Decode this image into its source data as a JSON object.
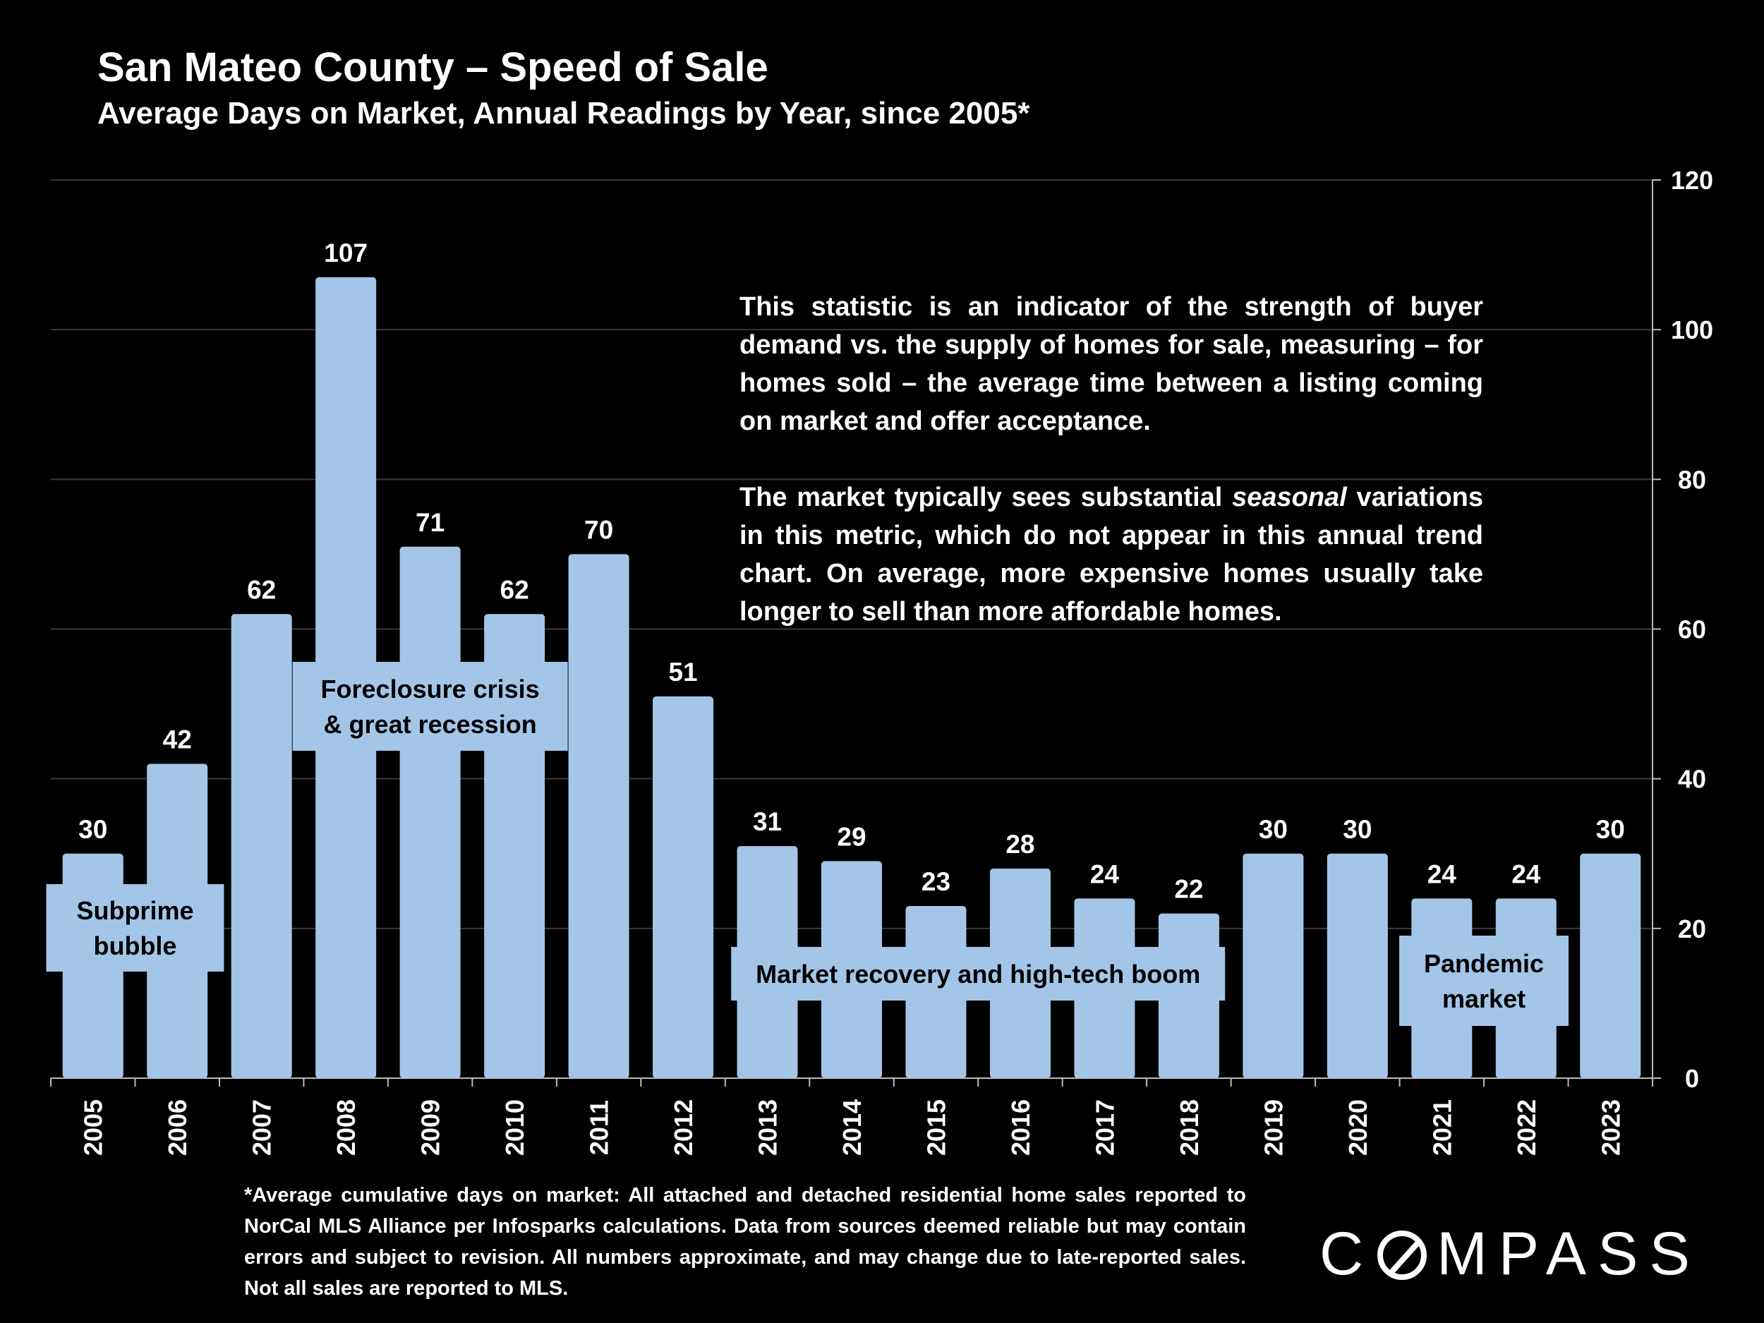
{
  "title": "San Mateo County – Speed of Sale",
  "subtitle": "Average Days on Market, Annual Readings by Year, since 2005*",
  "note": {
    "p1": "This statistic is an indicator of the strength of buyer demand vs. the supply of homes for sale, measuring – for homes sold – the average time between a listing coming on market and offer acceptance.",
    "p2_before": "The market typically sees substantial ",
    "p2_em": "seasonal",
    "p2_after": " variations in this metric, which do not appear in this annual trend chart. On average, more expensive homes usually take longer to sell than more affordable homes."
  },
  "footnote": "*Average cumulative days on market: All attached and detached residential home sales reported to NorCal MLS Alliance per Infosparks calculations. Data from sources deemed reliable but may contain errors and subject to revision. All numbers approximate, and may change due to late-reported sales. Not all sales are reported to MLS.",
  "logo": {
    "text_before": "C",
    "text_after": "MPASS",
    "icon": "compass-o-icon"
  },
  "colors": {
    "bar": "#A3C6E8",
    "background": "#000000",
    "text": "#FFFFFF",
    "grid": "#3a3a3a",
    "annotation_text": "#000000"
  },
  "chart_data": {
    "type": "bar",
    "categories": [
      "2005",
      "2006",
      "2007",
      "2008",
      "2009",
      "2010",
      "2011",
      "2012",
      "2013",
      "2014",
      "2015",
      "2016",
      "2017",
      "2018",
      "2019",
      "2020",
      "2021",
      "2022",
      "2023"
    ],
    "values": [
      30,
      42,
      62,
      107,
      71,
      62,
      70,
      51,
      31,
      29,
      23,
      28,
      24,
      22,
      30,
      30,
      24,
      24,
      30
    ],
    "ylim": [
      0,
      120
    ],
    "yticks": [
      0,
      20,
      40,
      60,
      80,
      100,
      120
    ],
    "y_axis_side": "right",
    "grid": true,
    "data_labels": true,
    "annotations": [
      {
        "text": [
          "Subprime",
          "bubble"
        ],
        "span": [
          "2005",
          "2006"
        ]
      },
      {
        "text": [
          "Foreclosure crisis",
          "& great recession"
        ],
        "span": [
          "2008",
          "2010"
        ]
      },
      {
        "text": [
          "Market recovery and high-tech boom"
        ],
        "span": [
          "2013",
          "2018"
        ]
      },
      {
        "text": [
          "Pandemic",
          "market"
        ],
        "span": [
          "2021",
          "2022"
        ]
      }
    ]
  }
}
